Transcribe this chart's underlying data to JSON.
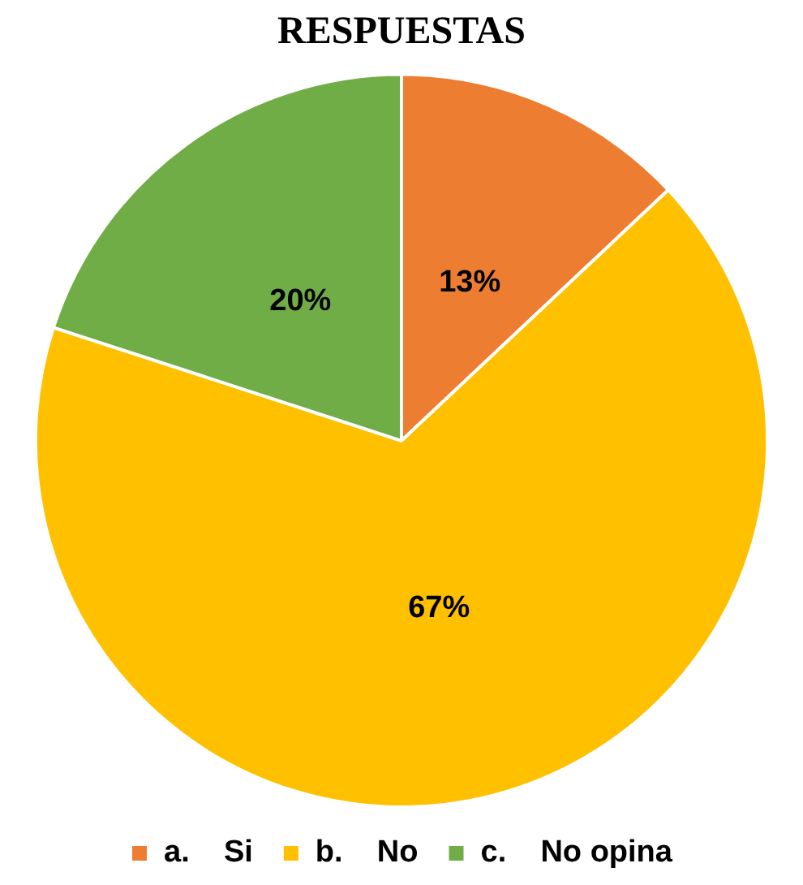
{
  "chart_data": {
    "type": "pie",
    "title": "RESPUESTAS",
    "categories": [
      "a.    Si",
      "b.    No",
      "c.    No opina"
    ],
    "values": [
      13,
      67,
      20
    ],
    "colors": [
      "#ed7d31",
      "#ffc000",
      "#70ad47"
    ],
    "value_labels": [
      "13%",
      "67%",
      "20%"
    ],
    "legend": "bottom"
  }
}
